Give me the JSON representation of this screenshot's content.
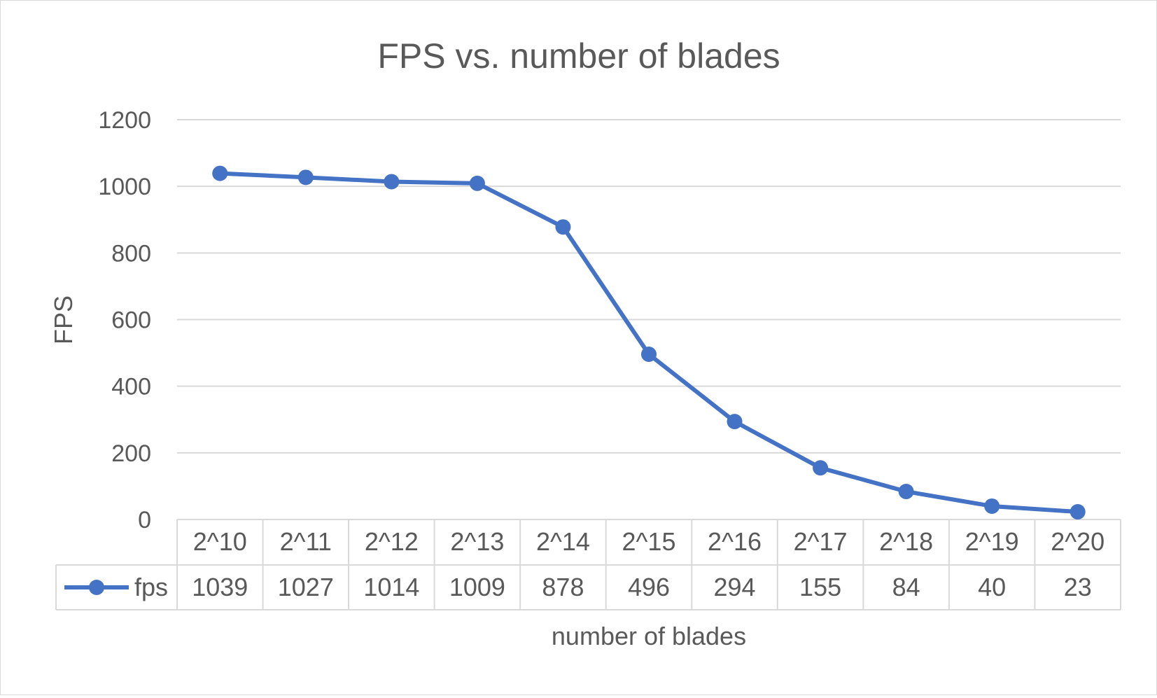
{
  "chart_data": {
    "type": "line",
    "title": "FPS vs. number of blades",
    "xlabel": "number of blades",
    "ylabel": "FPS",
    "categories": [
      "2^10",
      "2^11",
      "2^12",
      "2^13",
      "2^14",
      "2^15",
      "2^16",
      "2^17",
      "2^18",
      "2^19",
      "2^20"
    ],
    "series": [
      {
        "name": "fps",
        "values": [
          1039,
          1027,
          1014,
          1009,
          878,
          496,
          294,
          155,
          84,
          40,
          23
        ],
        "color": "#4472C4",
        "marker": "circle"
      }
    ],
    "ylim": [
      0,
      1200
    ],
    "yticks": [
      0,
      200,
      400,
      600,
      800,
      1000,
      1200
    ],
    "grid": true,
    "legend": "data table",
    "data_table": true
  }
}
